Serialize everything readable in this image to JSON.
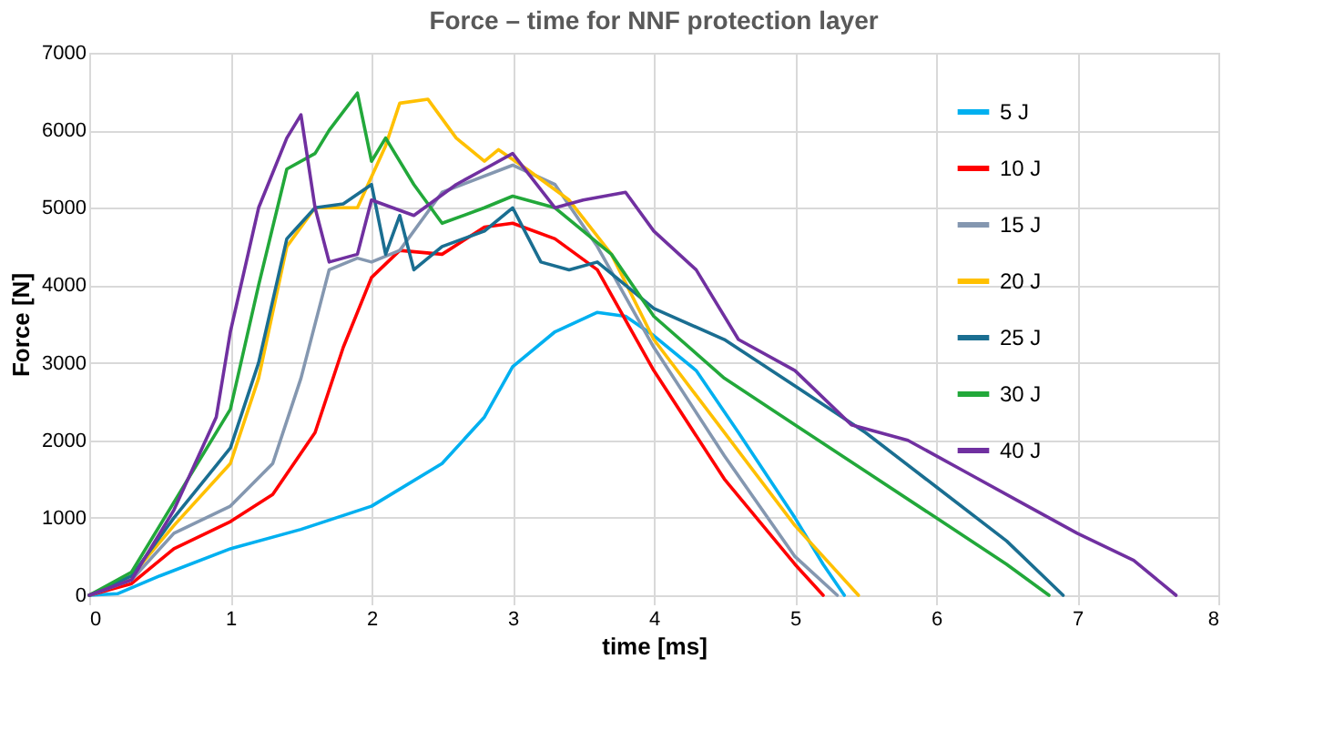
{
  "chart_data": {
    "type": "line",
    "title": "Force – time for NNF protection layer",
    "xlabel": "time [ms]",
    "ylabel": "Force [N]",
    "xlim": [
      0,
      8
    ],
    "xticks": [
      0,
      1,
      2,
      3,
      4,
      5,
      6,
      7,
      8
    ],
    "ylim": [
      0,
      7000
    ],
    "yticks": [
      0,
      1000,
      2000,
      3000,
      4000,
      5000,
      6000,
      7000
    ],
    "grid": true,
    "legend": "right",
    "series": [
      {
        "name": "5 J",
        "color": "#00b0f0",
        "x": [
          0,
          0.2,
          0.5,
          1,
          1.5,
          2,
          2.5,
          2.8,
          3,
          3.3,
          3.6,
          3.8,
          4,
          4.3,
          4.6,
          5,
          5.2,
          5.35
        ],
        "values": [
          0,
          20,
          250,
          600,
          850,
          1150,
          1700,
          2300,
          2950,
          3400,
          3650,
          3600,
          3350,
          2900,
          2100,
          1000,
          400,
          0
        ]
      },
      {
        "name": "10 J",
        "color": "#ff0000",
        "x": [
          0,
          0.3,
          0.6,
          1,
          1.3,
          1.6,
          1.8,
          2,
          2.2,
          2.5,
          2.8,
          3,
          3.3,
          3.6,
          4,
          4.5,
          5,
          5.2
        ],
        "values": [
          0,
          150,
          600,
          950,
          1300,
          2100,
          3200,
          4100,
          4450,
          4400,
          4750,
          4800,
          4600,
          4200,
          2900,
          1500,
          400,
          0
        ]
      },
      {
        "name": "15 J",
        "color": "#8497b0",
        "x": [
          0,
          0.3,
          0.6,
          1,
          1.3,
          1.5,
          1.7,
          1.9,
          2,
          2.2,
          2.5,
          3,
          3.3,
          3.6,
          4,
          4.5,
          5,
          5.3
        ],
        "values": [
          0,
          200,
          800,
          1150,
          1700,
          2800,
          4200,
          4350,
          4300,
          4450,
          5200,
          5550,
          5300,
          4500,
          3200,
          1800,
          500,
          0
        ]
      },
      {
        "name": "20 J",
        "color": "#ffc000",
        "x": [
          0,
          0.3,
          0.6,
          1,
          1.2,
          1.4,
          1.6,
          1.9,
          2.1,
          2.2,
          2.4,
          2.6,
          2.8,
          2.9,
          3.1,
          3.4,
          3.7,
          4,
          4.5,
          5,
          5.45
        ],
        "values": [
          0,
          250,
          900,
          1700,
          2800,
          4500,
          5000,
          5000,
          5800,
          6350,
          6400,
          5900,
          5600,
          5750,
          5500,
          5100,
          4400,
          3300,
          2100,
          900,
          0
        ]
      },
      {
        "name": "25 J",
        "color": "#1a6e91",
        "x": [
          0,
          0.3,
          0.6,
          1,
          1.2,
          1.4,
          1.6,
          1.8,
          2,
          2.1,
          2.2,
          2.3,
          2.5,
          2.8,
          3,
          3.2,
          3.4,
          3.6,
          4,
          4.5,
          5,
          5.5,
          6,
          6.5,
          6.9
        ],
        "values": [
          0,
          250,
          1000,
          1900,
          3000,
          4600,
          5000,
          5050,
          5300,
          4400,
          4900,
          4200,
          4500,
          4700,
          5000,
          4300,
          4200,
          4300,
          3700,
          3300,
          2700,
          2100,
          1400,
          700,
          0
        ]
      },
      {
        "name": "30 J",
        "color": "#22a83a",
        "x": [
          0,
          0.3,
          0.6,
          1,
          1.2,
          1.4,
          1.6,
          1.7,
          1.9,
          2,
          2.1,
          2.3,
          2.5,
          2.8,
          3,
          3.3,
          3.7,
          4,
          4.5,
          5,
          5.5,
          6,
          6.5,
          6.8
        ],
        "values": [
          0,
          300,
          1200,
          2400,
          4000,
          5500,
          5700,
          6000,
          6480,
          5600,
          5900,
          5300,
          4800,
          5000,
          5150,
          5000,
          4400,
          3600,
          2800,
          2200,
          1600,
          1000,
          400,
          0
        ]
      },
      {
        "name": "40 J",
        "color": "#7030a0",
        "x": [
          0,
          0.3,
          0.6,
          0.9,
          1,
          1.2,
          1.4,
          1.5,
          1.6,
          1.7,
          1.9,
          2,
          2.3,
          2.6,
          2.8,
          3,
          3.3,
          3.5,
          3.8,
          4,
          4.3,
          4.6,
          5,
          5.4,
          5.8,
          6.2,
          6.6,
          7,
          7.4,
          7.7
        ],
        "values": [
          0,
          200,
          1100,
          2300,
          3400,
          5000,
          5900,
          6200,
          5000,
          4300,
          4400,
          5100,
          4900,
          5300,
          5500,
          5700,
          5000,
          5100,
          5200,
          4700,
          4200,
          3300,
          2900,
          2200,
          2000,
          1600,
          1200,
          800,
          450,
          0
        ]
      }
    ]
  }
}
